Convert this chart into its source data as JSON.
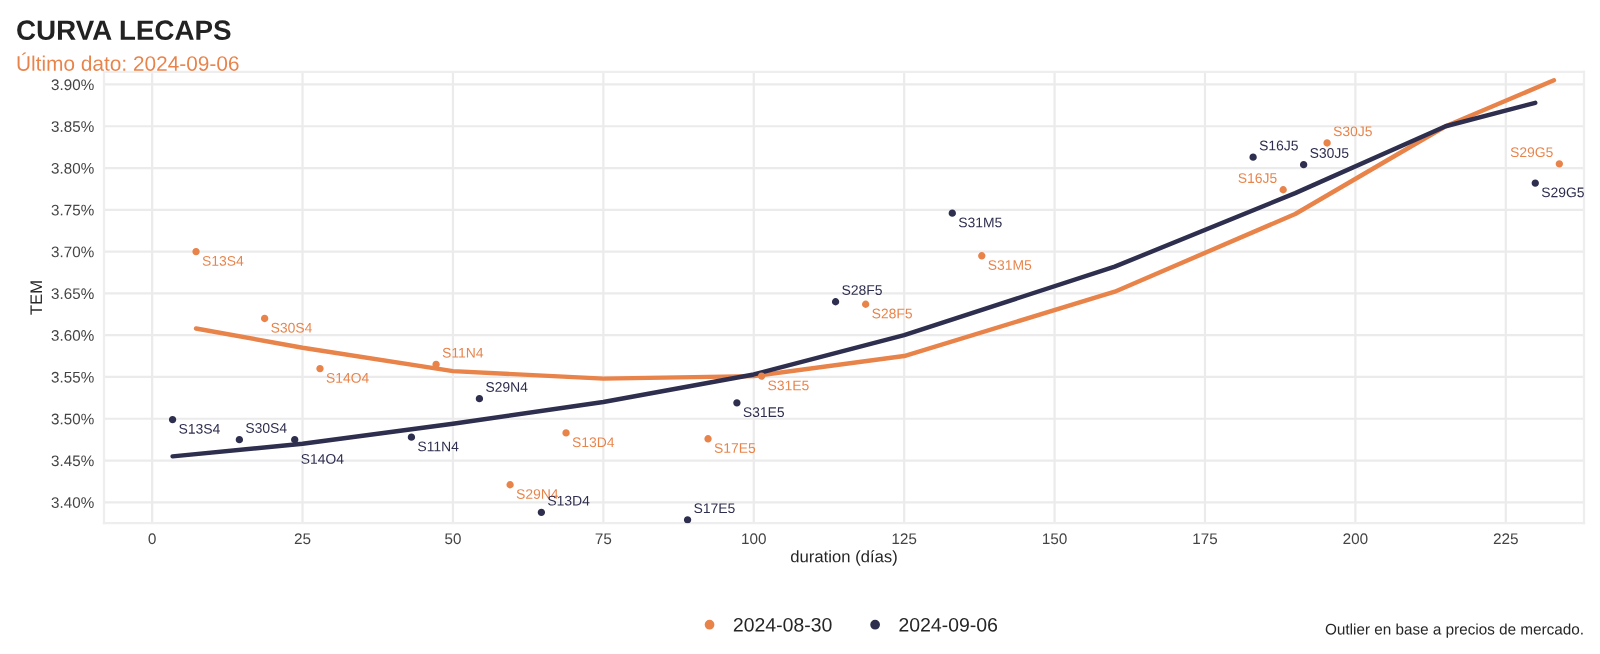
{
  "chart_data": {
    "type": "scatter",
    "title": "CURVA LECAPS",
    "subtitle": "Último dato: 2024-09-06",
    "xlabel": "duration (días)",
    "ylabel": "TEM",
    "xlim": [
      -8,
      238
    ],
    "ylim": [
      3.375,
      3.915
    ],
    "xticks": [
      0,
      25,
      50,
      75,
      100,
      125,
      150,
      175,
      200,
      225
    ],
    "yticks": [
      {
        "value": 3.4,
        "label": "3.40%"
      },
      {
        "value": 3.45,
        "label": "3.45%"
      },
      {
        "value": 3.5,
        "label": "3.50%"
      },
      {
        "value": 3.55,
        "label": "3.55%"
      },
      {
        "value": 3.6,
        "label": "3.60%"
      },
      {
        "value": 3.65,
        "label": "3.65%"
      },
      {
        "value": 3.7,
        "label": "3.70%"
      },
      {
        "value": 3.75,
        "label": "3.75%"
      },
      {
        "value": 3.8,
        "label": "3.80%"
      },
      {
        "value": 3.85,
        "label": "3.85%"
      },
      {
        "value": 3.9,
        "label": "3.90%"
      }
    ],
    "grid": true,
    "legend": "bottom",
    "marker": "circle",
    "series": [
      {
        "name": "2024-08-30",
        "color": "#e8834a",
        "x": [
          7.3,
          18.7,
          27.9,
          47.2,
          59.5,
          68.8,
          92.4,
          101.3,
          118.6,
          137.9,
          188,
          195.3,
          233.9
        ],
        "values": [
          3.7,
          3.62,
          3.56,
          3.565,
          3.421,
          3.483,
          3.476,
          3.551,
          3.637,
          3.695,
          3.774,
          3.83,
          3.805
        ],
        "value_labels": [
          "S13S4",
          "S30S4",
          "S14O4",
          "S11N4",
          "S29N4",
          "S13D4",
          "S17E5",
          "S31E5",
          "S28F5",
          "S31M5",
          "S16J5",
          "S30J5",
          "S29G5"
        ]
      },
      {
        "name": "2024-09-06",
        "color": "#2e2e4f",
        "x": [
          3.4,
          14.5,
          23.7,
          43.1,
          54.4,
          64.7,
          89.0,
          97.2,
          113.6,
          133,
          183,
          191.4,
          229.9
        ],
        "values": [
          3.499,
          3.475,
          3.475,
          3.478,
          3.524,
          3.388,
          3.379,
          3.519,
          3.64,
          3.746,
          3.813,
          3.804,
          3.782
        ],
        "value_labels": [
          "S13S4",
          "S30S4",
          "S14O4",
          "S11N4",
          "S29N4",
          "S13D4",
          "S17E5",
          "S31E5",
          "S28F5",
          "S31M5",
          "S16J5",
          "S30J5",
          "S29G5"
        ]
      },
      {
        "type": "line",
        "marker": "none",
        "color": "#e8834a",
        "x": [
          7.3,
          25,
          50,
          75,
          100,
          125,
          160,
          190,
          215,
          233
        ],
        "values": [
          3.608,
          3.585,
          3.557,
          3.548,
          3.551,
          3.575,
          3.652,
          3.745,
          3.85,
          3.905
        ]
      },
      {
        "type": "line",
        "marker": "none",
        "color": "#2e2e4f",
        "x": [
          3.4,
          25,
          50,
          75,
          100,
          125,
          160,
          190,
          215,
          229.9
        ],
        "values": [
          3.455,
          3.47,
          3.494,
          3.52,
          3.553,
          3.6,
          3.682,
          3.77,
          3.85,
          3.878
        ]
      }
    ],
    "annotations": [
      "Outlier en base a precios de mercado."
    ]
  }
}
